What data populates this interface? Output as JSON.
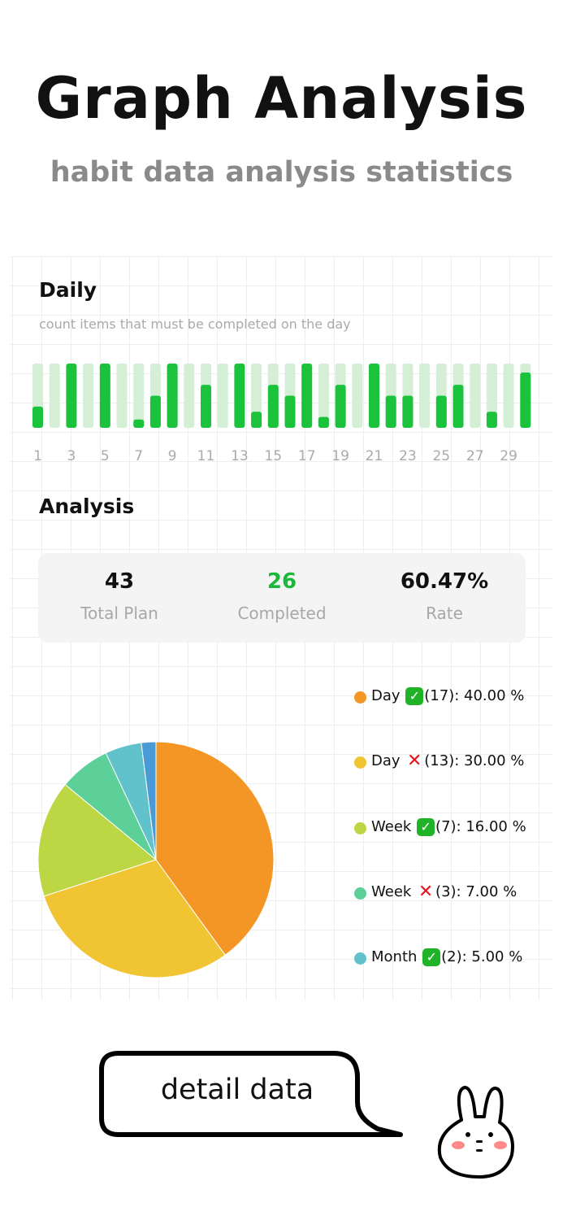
{
  "header": {
    "title": "Graph Analysis",
    "subtitle": "habit data analysis statistics"
  },
  "daily": {
    "title": "Daily",
    "subtitle": "count items that must be completed on the day",
    "chart_data": {
      "type": "bar",
      "categories": [
        1,
        2,
        3,
        4,
        5,
        6,
        7,
        8,
        9,
        10,
        11,
        12,
        13,
        14,
        15,
        16,
        17,
        18,
        19,
        20,
        21,
        22,
        23,
        24,
        25,
        26,
        27,
        28,
        29,
        30
      ],
      "tick_labels": [
        "1",
        "3",
        "5",
        "7",
        "9",
        "11",
        "13",
        "15",
        "17",
        "19",
        "21",
        "23",
        "25",
        "27",
        "29"
      ],
      "values": [
        0.33,
        0,
        1,
        0,
        1,
        0,
        0.13,
        0.5,
        1,
        0,
        0.67,
        0,
        1,
        0.25,
        0.67,
        0.5,
        1,
        0.17,
        0.67,
        0,
        1,
        0.5,
        0.5,
        0,
        0.5,
        0.67,
        0,
        0.25,
        0,
        0.86
      ],
      "ylim": [
        0,
        1
      ],
      "colors": {
        "fill": "#1bc23c",
        "track": "#d4efd6"
      }
    }
  },
  "analysis": {
    "title": "Analysis",
    "stats": [
      {
        "value": "43",
        "label": "Total Plan",
        "color": "#111111"
      },
      {
        "value": "26",
        "label": "Completed",
        "color": "#1bb93a"
      },
      {
        "value": "60.47%",
        "label": "Rate",
        "color": "#111111"
      }
    ],
    "chart_data": {
      "type": "pie",
      "slices": [
        {
          "label": "Day",
          "status": "done",
          "count": "(17)",
          "pct": "40.00 %",
          "value": 40,
          "color": "#f39625"
        },
        {
          "label": "Day",
          "status": "missed",
          "count": "(13)",
          "pct": "30.00 %",
          "value": 30,
          "color": "#f0c433"
        },
        {
          "label": "Week",
          "status": "done",
          "count": "(7)",
          "pct": "16.00 %",
          "value": 16,
          "color": "#bcd644"
        },
        {
          "label": "Week",
          "status": "missed",
          "count": "(3)",
          "pct": "7.00 %",
          "value": 7,
          "color": "#5dd09a"
        },
        {
          "label": "Month",
          "status": "done",
          "count": "(2)",
          "pct": "5.00 %",
          "value": 5,
          "color": "#62c2cc"
        },
        {
          "value": 2,
          "color": "#4a9ad8"
        }
      ]
    }
  },
  "footer": {
    "button_label": "detail data"
  }
}
